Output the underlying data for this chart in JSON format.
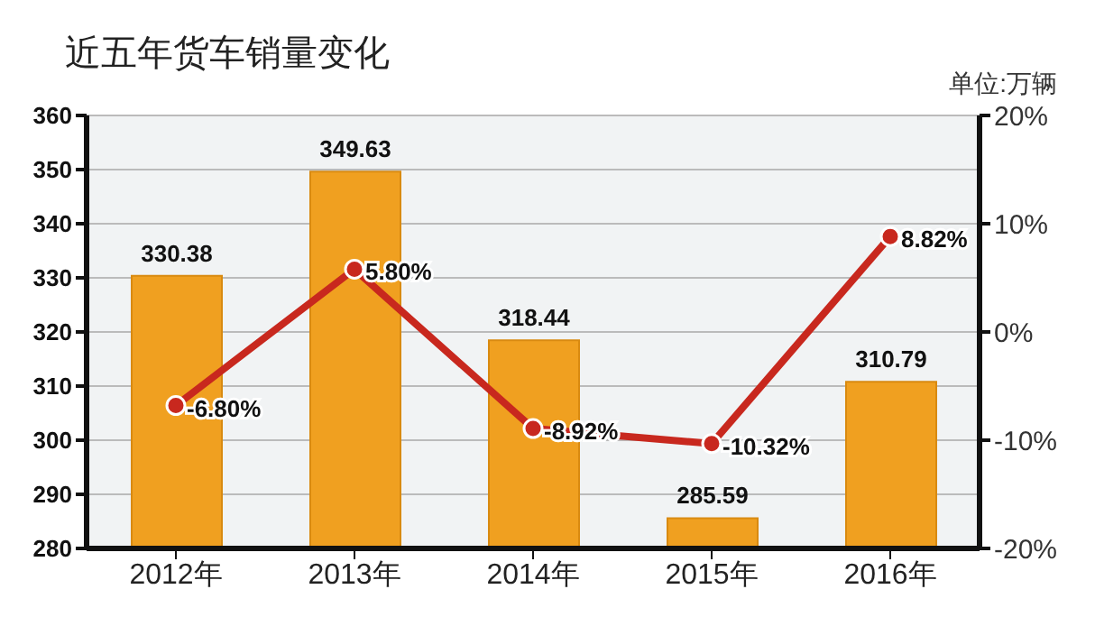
{
  "chart_data": {
    "type": "bar",
    "title": "近五年货车销量变化",
    "annotations": [
      "单位:万辆"
    ],
    "categories": [
      "2012年",
      "2013年",
      "2014年",
      "2015年",
      "2016年"
    ],
    "series": [
      {
        "color": "#f0a020",
        "values": [
          330.38,
          349.63,
          318.44,
          285.59,
          310.79
        ]
      },
      {
        "type": "line",
        "axis": "y2",
        "color": "#c8281e",
        "values": [
          -6.8,
          5.8,
          -8.92,
          -10.32,
          8.82
        ],
        "value_labels": [
          "-6.80%",
          "5.80%",
          "-8.92%",
          "-10.32%",
          "8.82%"
        ]
      }
    ],
    "ylim": [
      280,
      360
    ],
    "yticks": [
      280,
      290,
      300,
      310,
      320,
      330,
      340,
      350,
      360
    ],
    "y2lim": [
      -20,
      20
    ],
    "y2ticks": [
      {
        "value": -20,
        "label": "-20%"
      },
      {
        "value": -10,
        "label": "-10%"
      },
      {
        "value": 0,
        "label": "0%"
      },
      {
        "value": 10,
        "label": "10%"
      },
      {
        "value": 20,
        "label": "20%"
      }
    ],
    "data_labels": true,
    "grid": "y",
    "marker": "circle"
  }
}
